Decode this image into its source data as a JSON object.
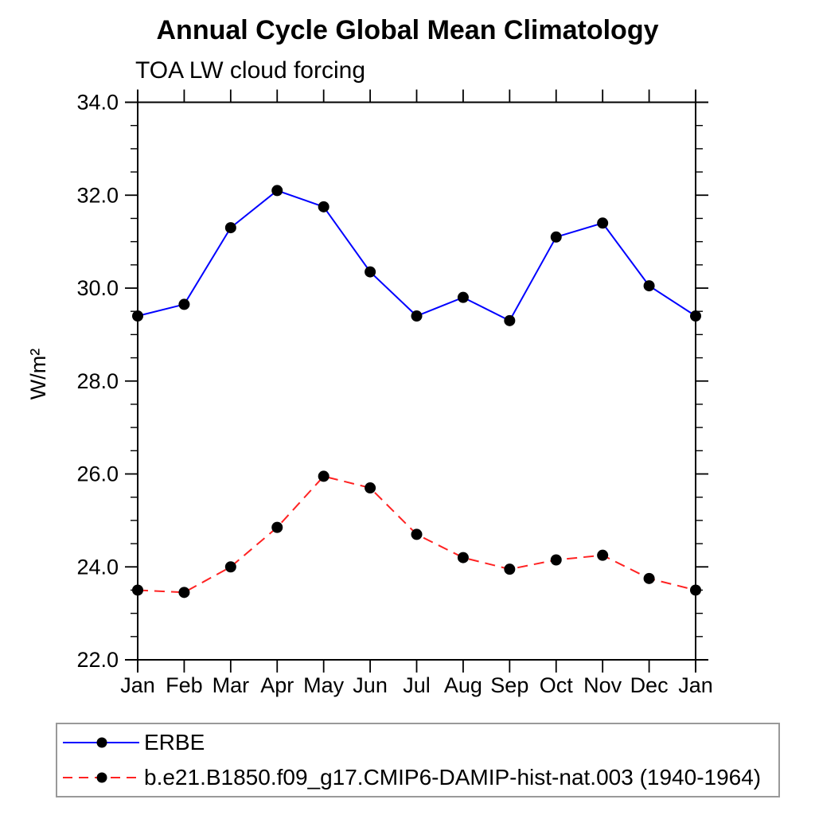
{
  "chart_data": {
    "type": "line",
    "title": "Annual Cycle Global Mean Climatology",
    "subtitle": "TOA LW cloud forcing",
    "ylabel": "W/m²",
    "xlabel": "",
    "x_tick_labels": [
      "Jan",
      "Feb",
      "Mar",
      "Apr",
      "May",
      "Jun",
      "Jul",
      "Aug",
      "Sep",
      "Oct",
      "Nov",
      "Dec",
      "Jan"
    ],
    "ylim": [
      22.0,
      34.0
    ],
    "y_major_ticks": [
      22.0,
      24.0,
      26.0,
      28.0,
      30.0,
      32.0,
      34.0
    ],
    "y_tick_labels": [
      "22.0",
      "24.0",
      "26.0",
      "28.0",
      "30.0",
      "32.0",
      "34.0"
    ],
    "y_minor_step": 0.5,
    "grid": false,
    "legend_position": "bottom-left-box",
    "axis_color": "#000000",
    "marker_color": "#000000",
    "legend_border_color": "#999999",
    "series": [
      {
        "name": "ERBE",
        "style": "solid",
        "color": "#0000ff",
        "values": [
          29.4,
          29.65,
          31.3,
          32.1,
          31.75,
          30.35,
          29.4,
          29.8,
          29.3,
          31.1,
          31.4,
          30.05,
          29.4
        ]
      },
      {
        "name": "b.e21.B1850.f09_g17.CMIP6-DAMIP-hist-nat.003 (1940-1964)",
        "style": "dashed",
        "color": "#ff2222",
        "values": [
          23.5,
          23.45,
          24.0,
          24.85,
          25.95,
          25.7,
          24.7,
          24.2,
          23.95,
          24.15,
          24.25,
          23.75,
          23.5
        ]
      }
    ]
  }
}
